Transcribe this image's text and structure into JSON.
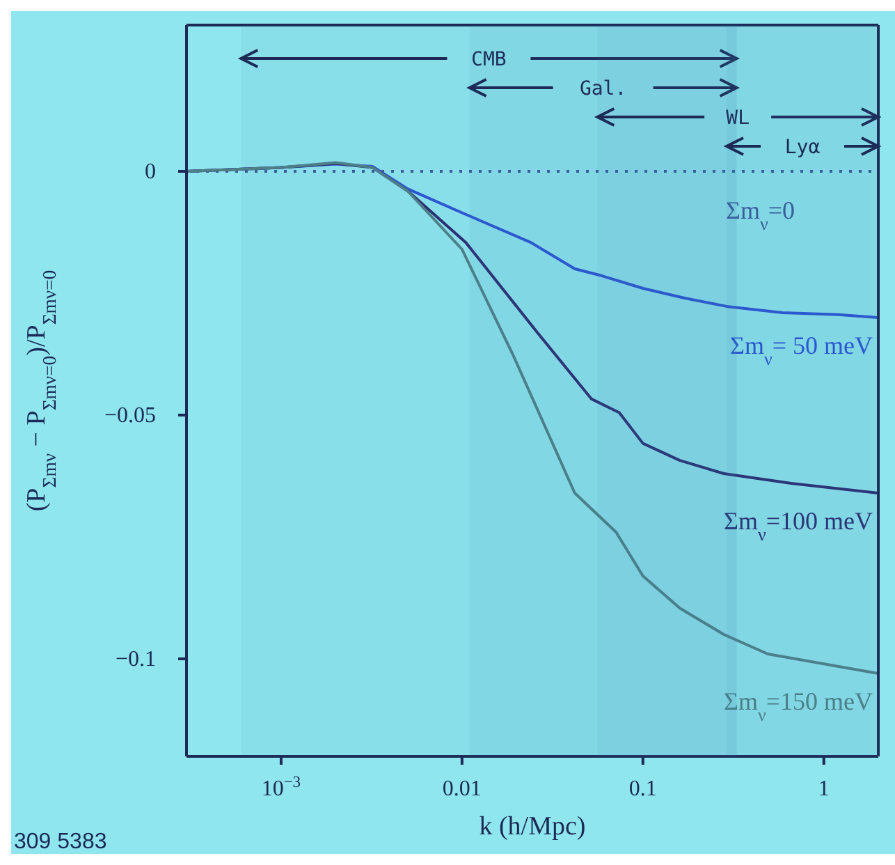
{
  "chart_data": {
    "type": "line",
    "xlabel": "k (h/Mpc)",
    "ylabel": "(P$_{Σmν}$ − P$_{Σmν=0}$)/P$_{Σmν=0}$",
    "log": "x",
    "xlim": [
      0.0003,
      2
    ],
    "xticks": [
      {
        "value": 0.001,
        "label": "10$^{−3}$"
      },
      0.01,
      0.1,
      1
    ],
    "ylim": [
      -0.12,
      0.03
    ],
    "yticks": [
      0,
      {
        "value": -0.05,
        "label": "−0.05"
      },
      {
        "value": -0.1,
        "label": "−0.1"
      }
    ],
    "series": [
      {
        "name": "Σm$_{ν}$= 50 meV",
        "color": "#2a52d6",
        "x": [
          0.0003,
          0.001,
          0.002,
          0.0032,
          0.005,
          0.01,
          0.024,
          0.042,
          0.059,
          0.1,
          0.17,
          0.29,
          0.59,
          1.2,
          2
        ],
        "values": [
          0,
          0.0008,
          0.0015,
          0.001,
          -0.0036,
          -0.0085,
          -0.0146,
          -0.02,
          -0.0214,
          -0.024,
          -0.026,
          -0.0277,
          -0.029,
          -0.0294,
          -0.03
        ]
      },
      {
        "name": "Σm$_{ν}$=100 meV",
        "color": "#2b2b70",
        "x": [
          0.0003,
          0.001,
          0.002,
          0.0032,
          0.005,
          0.0105,
          0.026,
          0.052,
          0.074,
          0.1,
          0.16,
          0.28,
          0.66,
          2
        ],
        "values": [
          0,
          0.0008,
          0.0016,
          0.0008,
          -0.004,
          -0.0146,
          -0.033,
          -0.0467,
          -0.0495,
          -0.0558,
          -0.0593,
          -0.062,
          -0.064,
          -0.066
        ]
      },
      {
        "name": "Σm$_{ν}$=150 meV",
        "color": "#4f7f86",
        "x": [
          0.0003,
          0.001,
          0.002,
          0.0032,
          0.005,
          0.01,
          0.019,
          0.042,
          0.071,
          0.1,
          0.16,
          0.28,
          0.49,
          2
        ],
        "values": [
          0,
          0.0008,
          0.0018,
          0.0008,
          -0.004,
          -0.016,
          -0.0374,
          -0.066,
          -0.074,
          -0.083,
          -0.0896,
          -0.095,
          -0.099,
          -0.103
        ]
      }
    ],
    "ref_lines": [
      {
        "axis": "y",
        "value": 0,
        "label": "Σm$_{ν}$=0",
        "line_style": "dotted",
        "color": "#3a5a9a"
      }
    ],
    "bands": [
      {
        "axis": "x",
        "from": 0.0006,
        "to": 0.33,
        "label": "CMB"
      },
      {
        "axis": "x",
        "from": 0.011,
        "to": 0.33,
        "label": "Gal."
      },
      {
        "axis": "x",
        "from": 0.056,
        "to": 2,
        "label": "WL"
      },
      {
        "axis": "x",
        "from": 0.29,
        "to": 2,
        "label": "Lyα"
      }
    ],
    "annotations": [
      "309 5383"
    ]
  }
}
